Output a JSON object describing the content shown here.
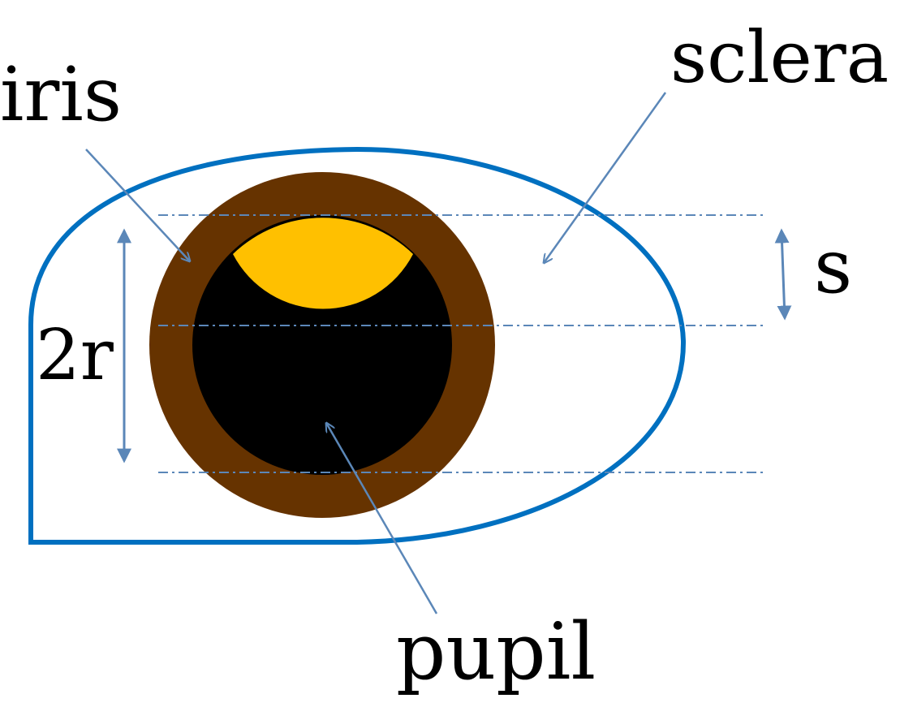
{
  "labels": {
    "iris": "iris",
    "sclera": "sclera",
    "pupil": "pupil",
    "two_r": "2r",
    "s": "s"
  },
  "colors": {
    "outline": "#0070C0",
    "iris": "#663300",
    "pupil": "#000000",
    "highlight": "#FFC000",
    "arrow": "#5B87B8",
    "guide": "#5B87B8",
    "background": "#FFFFFF"
  }
}
